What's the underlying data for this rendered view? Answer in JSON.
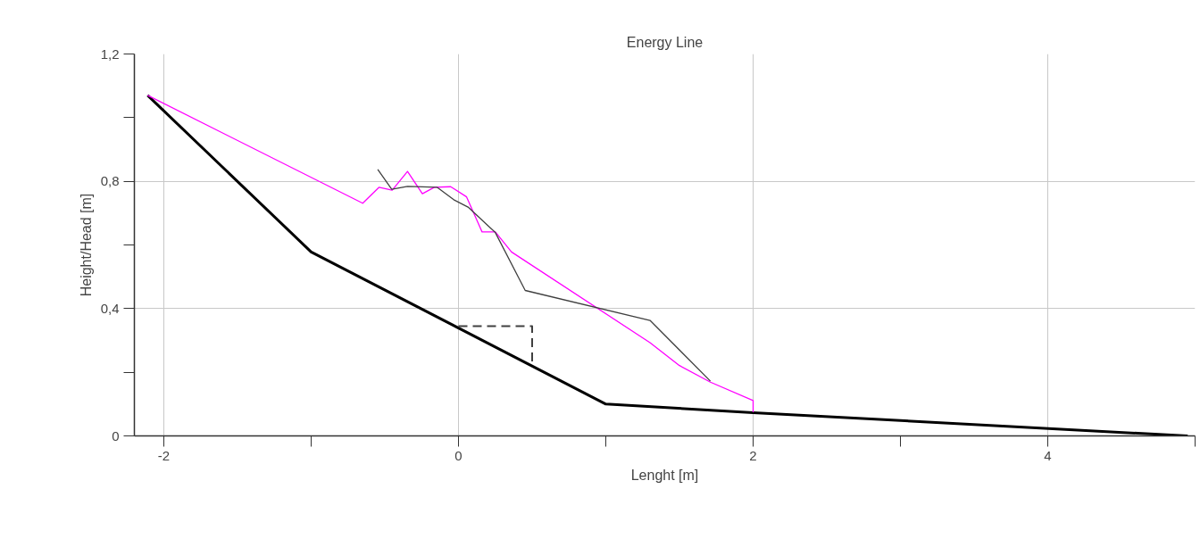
{
  "chart_data": {
    "type": "line",
    "title": "Energy Line",
    "xlabel": "Lenght [m]",
    "ylabel": "Height/Head [m]",
    "xlim": [
      -2.2,
      5
    ],
    "ylim": [
      0,
      1.2
    ],
    "xticks": [
      -2,
      {
        "value": -1,
        "label": null
      },
      0,
      {
        "value": 1,
        "label": null
      },
      2,
      {
        "value": 3,
        "label": null
      },
      4,
      {
        "value": 5,
        "label": null
      }
    ],
    "yticks": [
      0,
      {
        "value": 0.2,
        "label": null
      },
      {
        "value": 0.4,
        "label": "0,4"
      },
      {
        "value": 0.6,
        "label": null
      },
      {
        "value": 0.8,
        "label": "0,8"
      },
      {
        "value": 1.0,
        "label": null
      },
      {
        "value": 1.2,
        "label": "1,2"
      }
    ],
    "grid": true,
    "marker": "none",
    "series": [
      {
        "color": "#000000",
        "line_style": "solid",
        "x": [
          -2.11,
          -1.0,
          1.0,
          2.0,
          4.95
        ],
        "values": [
          1.07,
          0.578,
          0.1,
          0.073,
          0.0
        ]
      },
      {
        "color": "#ff00ff",
        "line_style": "solid",
        "x": [
          -2.11,
          -0.65,
          -0.54,
          -0.45,
          -0.346,
          -0.245,
          -0.164,
          -0.053,
          0.055,
          0.16,
          0.25,
          0.36,
          1.3,
          1.5,
          1.71,
          2.0,
          2.0
        ],
        "values": [
          1.07,
          0.731,
          0.781,
          0.772,
          0.831,
          0.761,
          0.781,
          0.783,
          0.751,
          0.641,
          0.641,
          0.578,
          0.293,
          0.221,
          0.169,
          0.111,
          0.074
        ]
      },
      {
        "color": "#404040",
        "line_style": "solid",
        "x": [
          -0.548,
          -0.453,
          -0.346,
          -0.144,
          -0.032,
          0.065,
          0.25,
          0.453,
          1.3,
          1.71
        ],
        "values": [
          0.837,
          0.775,
          0.784,
          0.781,
          0.742,
          0.719,
          0.639,
          0.457,
          0.363,
          0.172
        ]
      },
      {
        "color": "#404040",
        "line_style": "dashed",
        "x": [
          0.0,
          0.5,
          0.5
        ],
        "values": [
          0.345,
          0.345,
          0.227
        ]
      }
    ]
  }
}
